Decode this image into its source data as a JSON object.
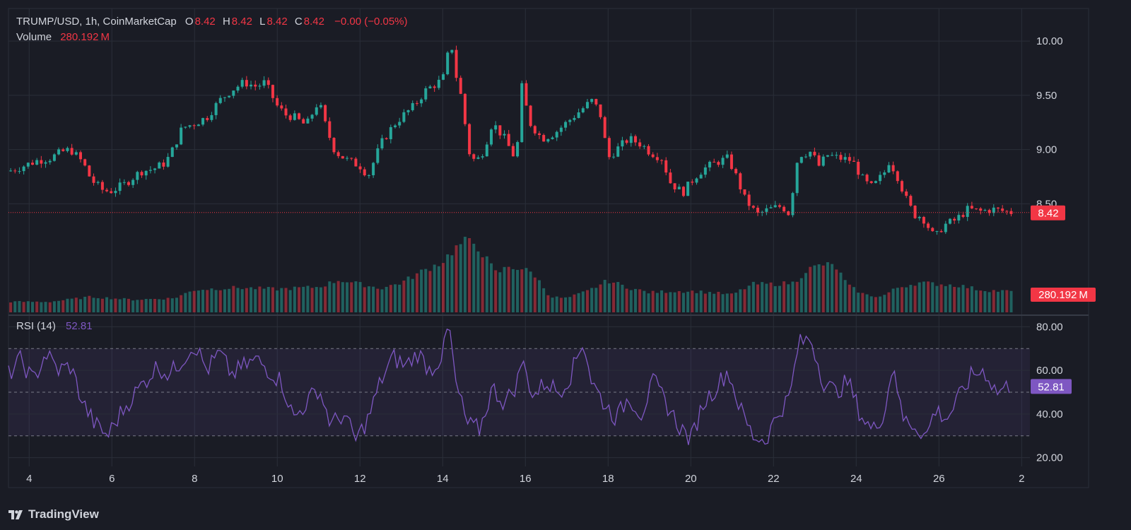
{
  "header": {
    "symbol": "TRUMP/USD, 1h, CoinMarketCap",
    "o_label": "O",
    "o_value": "8.42",
    "h_label": "H",
    "h_value": "8.42",
    "l_label": "L",
    "l_value": "8.42",
    "c_label": "C",
    "c_value": "8.42",
    "change": "−0.00 (−0.05%)",
    "volume_label": "Volume",
    "volume_value": "280.192 M"
  },
  "rsi_legend": {
    "label": "RSI (14)",
    "value": "52.81"
  },
  "brand": {
    "name": "TradingView"
  },
  "colors": {
    "up": "#26a69a",
    "down": "#f23645",
    "rsi": "#7e57c2",
    "background": "#1a1c25",
    "grid": "#2a2e39",
    "axis_text": "#d1d4dc"
  },
  "chart_data": [
    {
      "type": "candlestick",
      "title": "TRUMP/USD, 1h, CoinMarketCap",
      "x_ticks": [
        "4",
        "6",
        "8",
        "10",
        "12",
        "14",
        "16",
        "18",
        "20",
        "22",
        "24",
        "26",
        "2"
      ],
      "x_tick_positions": [
        4,
        6,
        8,
        10,
        12,
        14,
        16,
        18,
        20,
        22,
        24,
        26,
        28
      ],
      "xlim": [
        3.5,
        28.2
      ],
      "y_ticks": [
        "10.00",
        "9.50",
        "9.00",
        "8.50"
      ],
      "ylim": [
        7.5,
        10.3
      ],
      "last_price_label": "8.42",
      "last_price": 8.42,
      "close_path_x": [
        3.5,
        3.8,
        4.2,
        4.5,
        4.8,
        5.0,
        5.3,
        5.5,
        5.8,
        6.0,
        6.3,
        6.7,
        7.0,
        7.3,
        7.5,
        7.7,
        8.0,
        8.3,
        8.6,
        8.9,
        9.2,
        9.5,
        9.7,
        10.0,
        10.2,
        10.4,
        10.7,
        11.0,
        11.2,
        11.4,
        11.7,
        12.0,
        12.2,
        12.5,
        12.8,
        13.0,
        13.3,
        13.6,
        13.9,
        14.1,
        14.15,
        14.3,
        14.5,
        14.6,
        14.8,
        15.0,
        15.2,
        15.5,
        15.7,
        15.85,
        15.9,
        16.1,
        16.4,
        16.7,
        17.0,
        17.3,
        17.6,
        17.8,
        18.0,
        18.2,
        18.5,
        18.8,
        19.0,
        19.3,
        19.5,
        19.8,
        20.1,
        20.3,
        20.6,
        20.9,
        21.1,
        21.3,
        21.6,
        21.9,
        22.2,
        22.4,
        22.5,
        22.6,
        22.9,
        23.1,
        23.3,
        23.6,
        23.9,
        24.2,
        24.4,
        24.7,
        24.8,
        25.0,
        25.2,
        25.4,
        25.6,
        25.8,
        25.9,
        26.1,
        26.4,
        26.7,
        27.0,
        27.3,
        27.6,
        27.8
      ],
      "close_path_y": [
        8.8,
        8.84,
        8.9,
        8.92,
        8.98,
        9.0,
        8.88,
        8.72,
        8.62,
        8.62,
        8.68,
        8.8,
        8.82,
        8.88,
        9.02,
        9.2,
        9.24,
        9.3,
        9.45,
        9.55,
        9.62,
        9.58,
        9.62,
        9.4,
        9.32,
        9.3,
        9.22,
        9.45,
        9.18,
        8.98,
        8.9,
        8.85,
        8.76,
        9.05,
        9.22,
        9.3,
        9.4,
        9.55,
        9.62,
        9.7,
        10.15,
        9.72,
        9.4,
        9.0,
        8.88,
        9.0,
        9.25,
        9.1,
        8.95,
        9.1,
        9.6,
        9.25,
        9.1,
        9.15,
        9.25,
        9.35,
        9.45,
        9.35,
        8.92,
        9.0,
        9.1,
        9.05,
        8.98,
        8.92,
        8.7,
        8.6,
        8.75,
        8.82,
        8.88,
        8.92,
        8.75,
        8.55,
        8.4,
        8.45,
        8.48,
        8.4,
        8.75,
        8.95,
        8.98,
        8.85,
        8.95,
        8.92,
        8.9,
        8.7,
        8.65,
        8.8,
        8.9,
        8.75,
        8.55,
        8.4,
        8.38,
        8.25,
        8.18,
        8.3,
        8.35,
        8.45,
        8.43,
        8.45,
        8.43,
        8.42
      ]
    },
    {
      "type": "bar",
      "title": "Volume",
      "last_value_label": "280.192 M",
      "envelope_x": [
        3.5,
        4.5,
        5.5,
        6.5,
        7.5,
        8.0,
        9.0,
        10.0,
        11.0,
        11.5,
        12.0,
        12.5,
        13.0,
        13.5,
        14.0,
        14.2,
        14.5,
        14.8,
        15.0,
        15.3,
        15.6,
        15.9,
        16.2,
        16.6,
        17.0,
        17.5,
        18.0,
        18.5,
        19.0,
        19.5,
        20.0,
        20.5,
        21.0,
        21.5,
        22.0,
        22.5,
        22.8,
        23.2,
        23.5,
        23.8,
        24.2,
        24.6,
        25.0,
        25.5,
        26.0,
        26.5,
        27.0,
        27.5,
        27.8
      ],
      "envelope_rel": [
        0.15,
        0.15,
        0.22,
        0.18,
        0.2,
        0.32,
        0.35,
        0.33,
        0.36,
        0.46,
        0.4,
        0.34,
        0.42,
        0.58,
        0.72,
        0.85,
        1.0,
        0.98,
        0.8,
        0.55,
        0.65,
        0.62,
        0.55,
        0.22,
        0.2,
        0.3,
        0.45,
        0.35,
        0.28,
        0.3,
        0.3,
        0.28,
        0.25,
        0.4,
        0.4,
        0.42,
        0.6,
        0.68,
        0.65,
        0.38,
        0.25,
        0.22,
        0.35,
        0.42,
        0.4,
        0.38,
        0.32,
        0.3,
        0.3
      ]
    },
    {
      "type": "line",
      "title": "RSI (14)",
      "last_value_label": "52.81",
      "last_value": 52.81,
      "ylim": [
        16,
        84
      ],
      "y_ticks": [
        "80.00",
        "60.00",
        "40.00",
        "20.00"
      ],
      "band": [
        30,
        70
      ],
      "midline": 50,
      "x": [
        3.5,
        3.8,
        4.1,
        4.4,
        4.7,
        5.0,
        5.3,
        5.6,
        5.9,
        6.2,
        6.5,
        6.8,
        7.1,
        7.4,
        7.7,
        8.0,
        8.3,
        8.6,
        8.9,
        9.2,
        9.5,
        9.8,
        10.1,
        10.4,
        10.7,
        11.0,
        11.3,
        11.6,
        11.9,
        12.2,
        12.5,
        12.8,
        13.1,
        13.4,
        13.7,
        14.0,
        14.15,
        14.3,
        14.6,
        14.9,
        15.2,
        15.5,
        15.8,
        15.9,
        16.2,
        16.5,
        16.8,
        17.1,
        17.4,
        17.6,
        17.9,
        18.2,
        18.5,
        18.8,
        19.1,
        19.4,
        19.7,
        20.0,
        20.3,
        20.6,
        20.9,
        21.2,
        21.5,
        21.8,
        22.1,
        22.4,
        22.6,
        22.9,
        23.2,
        23.5,
        23.8,
        24.1,
        24.4,
        24.7,
        24.9,
        25.1,
        25.4,
        25.7,
        25.9,
        26.2,
        26.5,
        26.8,
        27.1,
        27.4,
        27.7
      ],
      "y": [
        58,
        65,
        55,
        68,
        60,
        62,
        45,
        35,
        30,
        40,
        48,
        55,
        62,
        58,
        65,
        72,
        60,
        68,
        58,
        62,
        65,
        60,
        55,
        38,
        45,
        52,
        35,
        40,
        28,
        38,
        55,
        66,
        62,
        68,
        60,
        67,
        82,
        55,
        35,
        33,
        52,
        45,
        54,
        65,
        48,
        55,
        50,
        58,
        74,
        55,
        45,
        38,
        48,
        40,
        55,
        45,
        35,
        28,
        45,
        52,
        60,
        42,
        30,
        28,
        40,
        48,
        72,
        75,
        55,
        50,
        55,
        40,
        32,
        42,
        65,
        38,
        35,
        30,
        42,
        38,
        48,
        58,
        60,
        50,
        53
      ]
    }
  ]
}
